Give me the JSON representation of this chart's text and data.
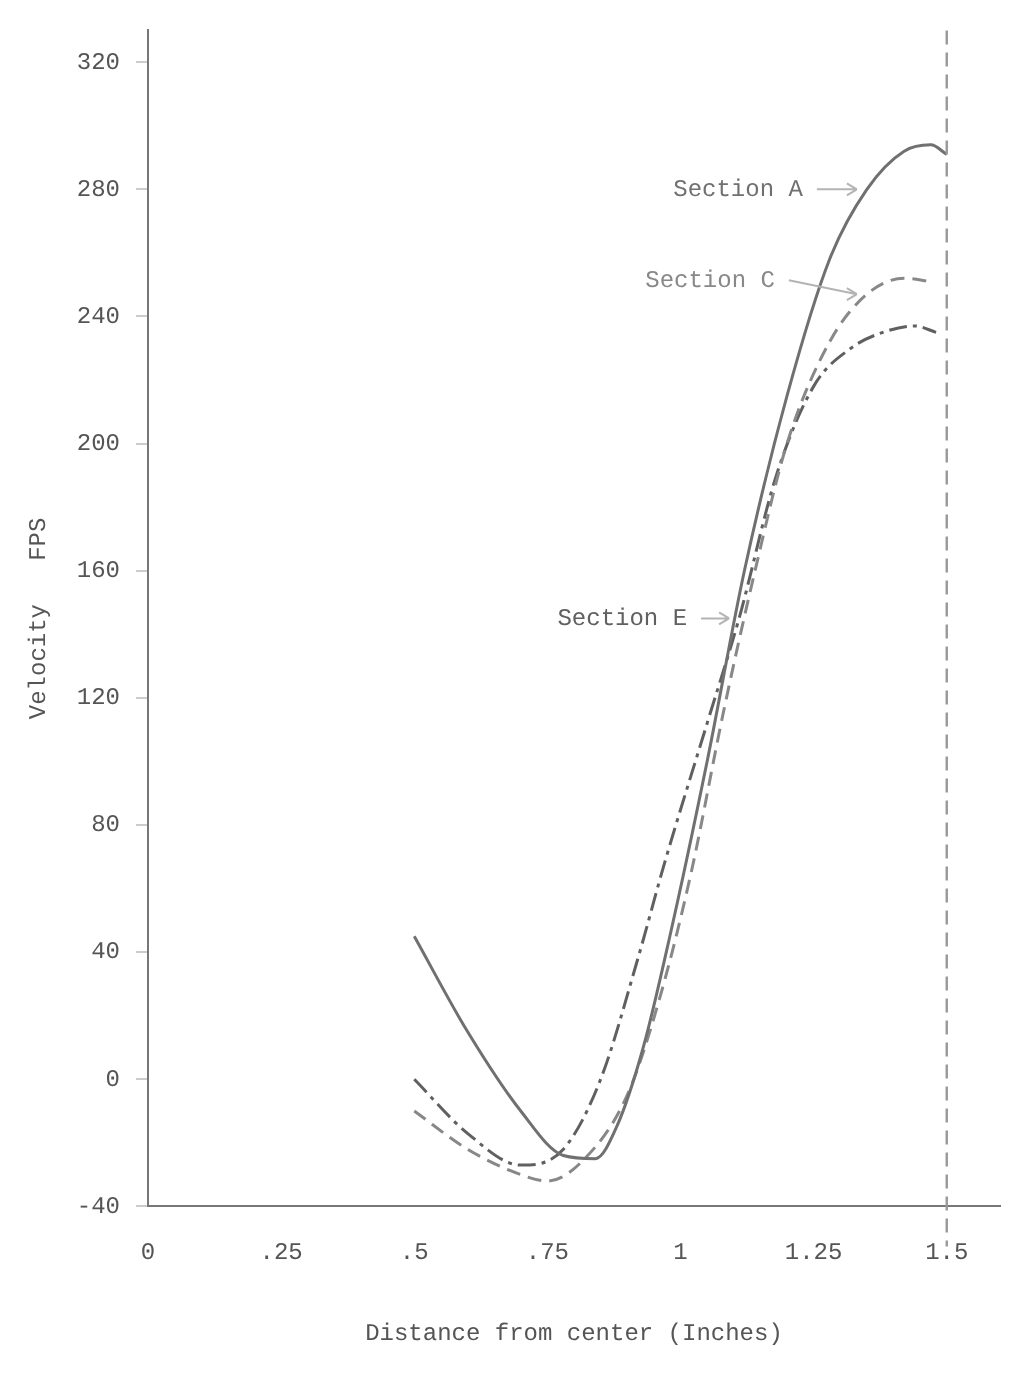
{
  "chart_data": {
    "type": "line",
    "xlabel": "Distance from center (Inches)",
    "ylabel": "Velocity   FPS",
    "xlim": [
      0,
      1.6
    ],
    "ylim": [
      -40,
      330
    ],
    "xticks": [
      0,
      {
        "value": 0.25,
        "label": ".25"
      },
      {
        "value": 0.5,
        "label": ".5"
      },
      {
        "value": 0.75,
        "label": ".75"
      },
      1,
      1.25,
      1.5
    ],
    "yticks": [
      -40,
      0,
      40,
      80,
      120,
      160,
      200,
      240,
      280,
      320
    ],
    "grid": false,
    "legend": false,
    "marker": "none",
    "ref_lines": [
      {
        "axis": "x",
        "value": 1.5,
        "color": "#999999",
        "line_style": "dashed"
      }
    ],
    "series": [
      {
        "name": "Section A",
        "color": "#707070",
        "line_style": "solid",
        "x": [
          0.5,
          0.6,
          0.7,
          0.78,
          0.84,
          0.88,
          0.93,
          0.98,
          1.05,
          1.12,
          1.2,
          1.28,
          1.35,
          1.42,
          1.47,
          1.5
        ],
        "values": [
          45,
          15,
          -10,
          -24,
          -25,
          -15,
          10,
          45,
          100,
          160,
          215,
          258,
          280,
          292,
          294,
          291
        ]
      },
      {
        "name": "Section C",
        "color": "#888888",
        "line_style": "dashed",
        "x": [
          0.5,
          0.6,
          0.7,
          0.75,
          0.82,
          0.9,
          0.96,
          1.02,
          1.08,
          1.14,
          1.2,
          1.28,
          1.35,
          1.42,
          1.47
        ],
        "values": [
          -10,
          -22,
          -30,
          -32,
          -25,
          -5,
          25,
          65,
          115,
          160,
          200,
          232,
          247,
          252,
          251
        ]
      },
      {
        "name": "Section E",
        "color": "#606060",
        "line_style": "dashdot",
        "x": [
          0.5,
          0.6,
          0.7,
          0.78,
          0.85,
          0.92,
          0.97,
          1.05,
          1.11,
          1.18,
          1.25,
          1.32,
          1.38,
          1.44,
          1.48
        ],
        "values": [
          0,
          -17,
          -27,
          -22,
          0,
          38,
          68,
          112,
          145,
          190,
          218,
          230,
          235,
          237,
          235
        ]
      }
    ]
  }
}
